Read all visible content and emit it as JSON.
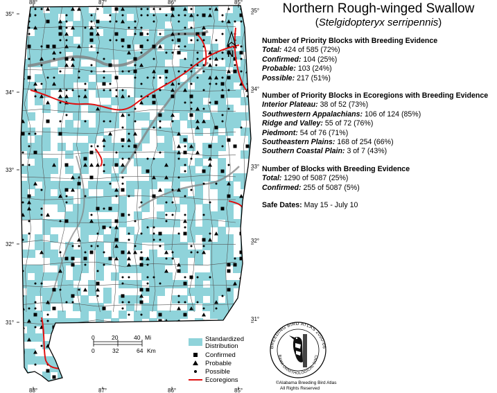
{
  "title": "Northern Rough-winged Swallow",
  "subtitle_open": "(",
  "subtitle_species": "Stelgidopteryx serripennis",
  "subtitle_close": ")",
  "priority": {
    "heading": "Number of Priority Blocks with Breeding Evidence",
    "rows": [
      {
        "label": "Total:",
        "value": "424 of 585 (72%)"
      },
      {
        "label": "Confirmed:",
        "value": "104 (25%)"
      },
      {
        "label": "Probable:",
        "value": "103 (24%)"
      },
      {
        "label": "Possible:",
        "value": "217 (51%)"
      }
    ]
  },
  "ecoregions": {
    "heading": "Number of Priority Blocks in Ecoregions with Breeding Evidence",
    "rows": [
      {
        "label": "Interior Plateau:",
        "value": "38 of 52 (73%)"
      },
      {
        "label": "Southwestern Appalachians:",
        "value": "106 of 124 (85%)"
      },
      {
        "label": "Ridge and Valley:",
        "value": "55 of 72 (76%)"
      },
      {
        "label": "Piedmont:",
        "value": "54 of 76 (71%)"
      },
      {
        "label": "Southeastern Plains:",
        "value": "168 of 254 (66%)"
      },
      {
        "label": "Southern Coastal Plain:",
        "value": "3 of 7 (43%)"
      }
    ]
  },
  "all_blocks": {
    "heading": "Number of Blocks with Breeding Evidence",
    "rows": [
      {
        "label": "Total:",
        "value": "1290 of 5087 (25%)"
      },
      {
        "label": "Confirmed:",
        "value": "255 of 5087 (5%)"
      }
    ]
  },
  "safe_dates": {
    "label": "Safe Dates:",
    "value": "May 15 - July 10"
  },
  "legend": {
    "standardized": "Standardized",
    "distribution": "Distribution",
    "confirmed": "Confirmed",
    "probable": "Probable",
    "possible": "Possible",
    "ecoregions": "Ecoregions"
  },
  "scale": {
    "mi_ticks": [
      "0",
      "20",
      "40"
    ],
    "mi_unit": "Mi",
    "km_ticks": [
      "0",
      "32",
      "64"
    ],
    "km_unit": "Km"
  },
  "longitudes": [
    "88°",
    "87°",
    "86°",
    "85°"
  ],
  "latitudes": [
    "35°",
    "34°",
    "33°",
    "32°",
    "31°"
  ],
  "north_label": "N",
  "seal": {
    "outer_text": "BREEDING BIRD ATLAS 2000-06",
    "inner_text": "ALABAMA ORNITHOLOGICAL SOCIETY",
    "credit": "©Alabama Breeding Bird Atlas",
    "rights": "All Rights Reserved"
  },
  "colors": {
    "distribution": "#8fd3da",
    "ecoregion_line": "#e01010",
    "county_line": "#555555",
    "river": "#808080"
  }
}
